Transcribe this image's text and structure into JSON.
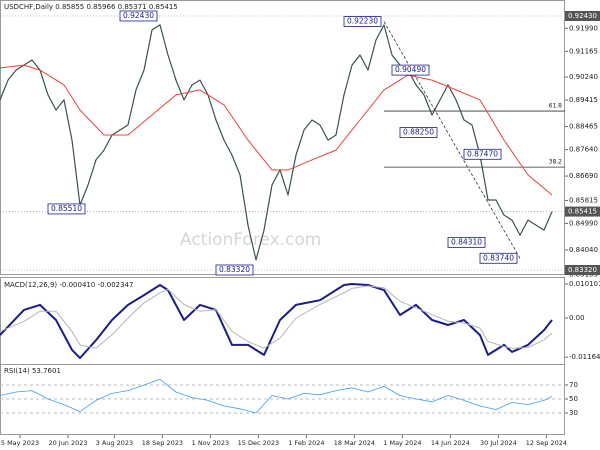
{
  "chart_data": [
    {
      "type": "line",
      "title": "USDCHF,Daily 0.85855 0.85966 0.85371 0.85415",
      "watermark": "ActionForex.com",
      "xlim": [
        0,
        70
      ],
      "ylim": [
        0.83248,
        0.92645
      ],
      "yticks": [
        {
          "value": 0.9199,
          "label": "0.91990"
        },
        {
          "value": 0.91165,
          "label": "0.91165"
        },
        {
          "value": 0.9024,
          "label": "0.90240"
        },
        {
          "value": 0.89415,
          "label": "0.89415"
        },
        {
          "value": 0.88465,
          "label": "0.88465"
        },
        {
          "value": 0.8764,
          "label": "0.87640"
        },
        {
          "value": 0.8669,
          "label": "0.86690"
        },
        {
          "value": 0.85815,
          "label": "0.85815"
        },
        {
          "value": 0.8499,
          "label": "0.84990"
        },
        {
          "value": 0.8404,
          "label": "0.84040"
        },
        {
          "value": 0.83165,
          "label": "0.83165"
        }
      ],
      "series": [
        {
          "color": "#37524f",
          "line_width": 1.2,
          "values": [
            0.8942,
            0.9013,
            0.9049,
            0.9067,
            0.9085,
            0.9049,
            0.896,
            0.8906,
            0.8942,
            0.8798,
            0.8565,
            0.8637,
            0.8727,
            0.8762,
            0.8816,
            0.8834,
            0.8852,
            0.8978,
            0.9049,
            0.9193,
            0.9211,
            0.9103,
            0.9013,
            0.8942,
            0.8996,
            0.9013,
            0.896,
            0.887,
            0.8798,
            0.8744,
            0.8673,
            0.8493,
            0.8368,
            0.8475,
            0.8637,
            0.8691,
            0.8601,
            0.8744,
            0.8834,
            0.887,
            0.8852,
            0.8798,
            0.8816,
            0.896,
            0.9067,
            0.9103,
            0.9049,
            0.9157,
            0.9211,
            0.9103,
            0.9067,
            0.9049,
            0.8996,
            0.896,
            0.8888,
            0.8942,
            0.8996,
            0.8942,
            0.887,
            0.8852,
            0.8744,
            0.8583,
            0.8583,
            0.8529,
            0.8511,
            0.8457,
            0.8511,
            0.8493,
            0.8475,
            0.85415
          ]
        },
        {
          "color": "#e8423c",
          "line_width": 1,
          "x": [
            0,
            3,
            5,
            8,
            10,
            13,
            16,
            19,
            22,
            25,
            28,
            31,
            34,
            36,
            39,
            42,
            45,
            48,
            51,
            54,
            57,
            60,
            63,
            66,
            69
          ],
          "values": [
            0.9057,
            0.9067,
            0.9049,
            0.8996,
            0.8906,
            0.8816,
            0.8816,
            0.8888,
            0.896,
            0.8978,
            0.8924,
            0.8798,
            0.8691,
            0.8691,
            0.8727,
            0.8762,
            0.887,
            0.8978,
            0.9031,
            0.9013,
            0.8978,
            0.8942,
            0.8798,
            0.8673,
            0.8601
          ]
        }
      ],
      "price_markers": [
        {
          "value": 0.9243,
          "label": "0.92430"
        },
        {
          "value": 0.85415,
          "label": "0.85415"
        },
        {
          "value": 0.8332,
          "label": "0.83320"
        }
      ],
      "annotations": [
        {
          "label": "0.92430",
          "x": 15,
          "value": 0.9243
        },
        {
          "label": "0.92230",
          "x": 43,
          "value": 0.9223
        },
        {
          "label": "0.90490",
          "x": 49,
          "value": 0.9049
        },
        {
          "label": "0.88250",
          "x": 50,
          "value": 0.8825
        },
        {
          "label": "0.87470",
          "x": 58,
          "value": 0.8747
        },
        {
          "label": "0.85510",
          "x": 6,
          "value": 0.8551
        },
        {
          "label": "0.84310",
          "x": 56,
          "value": 0.8431
        },
        {
          "label": "0.83740",
          "x": 60,
          "value": 0.8374
        },
        {
          "label": "0.83320",
          "x": 27,
          "value": 0.8332
        }
      ],
      "fib_levels": [
        {
          "label": "61.8",
          "value": 0.8902
        },
        {
          "label": "38.2",
          "value": 0.8701
        }
      ],
      "trendline": {
        "x": [
          48,
          65
        ],
        "values": [
          0.9223,
          0.8374
        ]
      }
    },
    {
      "type": "line",
      "title": "MACD(12,26,9) -0.000410 -0.002347",
      "xlim": [
        0,
        70
      ],
      "ylim": [
        -0.0131,
        0.0113
      ],
      "yticks": [
        {
          "value": 0.010101,
          "label": "0.010101"
        },
        {
          "value": 0,
          "label": "0.00"
        },
        {
          "value": -0.011645,
          "label": "-0.011645"
        }
      ],
      "series": [
        {
          "color": "#1c1c8a",
          "line_width": 2,
          "x": [
            0,
            3,
            5,
            7,
            9,
            10,
            12,
            14,
            16,
            18,
            20,
            21,
            23,
            25,
            27,
            29,
            31,
            33,
            35,
            37,
            40,
            43,
            44,
            46,
            48,
            50,
            52,
            54,
            56,
            58,
            60,
            61,
            63,
            64,
            66,
            68,
            69
          ],
          "values": [
            -0.0051,
            0.0024,
            0.0039,
            -0.0006,
            -0.0095,
            -0.0119,
            -0.0066,
            -0.0006,
            0.0039,
            0.0068,
            0.0098,
            0.0083,
            -0.0006,
            0.0039,
            0.0024,
            -0.008,
            -0.008,
            -0.011,
            -0.0006,
            0.0039,
            0.0053,
            0.0098,
            0.0101,
            0.0098,
            0.0083,
            0.0009,
            0.0039,
            -0.0006,
            -0.0021,
            -0.0006,
            -0.0051,
            -0.011,
            -0.008,
            -0.0101,
            -0.008,
            -0.0036,
            -0.0006
          ]
        },
        {
          "color": "#b5b5b5",
          "line_width": 1,
          "x": [
            0,
            3,
            5,
            7,
            9,
            10,
            12,
            14,
            16,
            18,
            20,
            21,
            23,
            25,
            27,
            29,
            31,
            33,
            35,
            37,
            40,
            43,
            44,
            46,
            48,
            50,
            52,
            54,
            56,
            58,
            60,
            61,
            63,
            64,
            66,
            68,
            69
          ],
          "values": [
            -0.004,
            -0.001,
            0.002,
            0.002,
            -0.004,
            -0.008,
            -0.009,
            -0.005,
            0,
            0.0045,
            0.0075,
            0.0085,
            0.004,
            0.002,
            0.0025,
            -0.004,
            -0.007,
            -0.009,
            -0.006,
            0,
            0.004,
            0.0075,
            0.0088,
            0.0095,
            0.009,
            0.005,
            0.003,
            0.001,
            -0.001,
            -0.0015,
            -0.003,
            -0.007,
            -0.0085,
            -0.009,
            -0.0088,
            -0.0065,
            -0.0045
          ]
        }
      ]
    },
    {
      "type": "line",
      "title": "RSI(14) 53.7601",
      "xlim": [
        0,
        70
      ],
      "ylim": [
        3,
        97
      ],
      "yticks": [
        70,
        50,
        30
      ],
      "grid": true,
      "xticks": [
        {
          "value": 2.5,
          "label": "5 May 2023"
        },
        {
          "value": 8.5,
          "label": "20 Jun 2023"
        },
        {
          "value": 14.3,
          "label": "3 Aug 2023"
        },
        {
          "value": 20.3,
          "label": "18 Sep 2023"
        },
        {
          "value": 26.3,
          "label": "1 Nov 2023"
        },
        {
          "value": 32.3,
          "label": "15 Dec 2023"
        },
        {
          "value": 38.3,
          "label": "1 Feb 2024"
        },
        {
          "value": 44.3,
          "label": "18 Mar 2024"
        },
        {
          "value": 50.3,
          "label": "1 May 2024"
        },
        {
          "value": 56.3,
          "label": "14 Jun 2024"
        },
        {
          "value": 62.3,
          "label": "30 Jul 2024"
        },
        {
          "value": 68.3,
          "label": "12 Sep 2024"
        }
      ],
      "series": [
        {
          "color": "#3d9df0",
          "line_width": 0.8,
          "x": [
            0,
            2,
            4,
            6,
            8,
            10,
            12,
            14,
            16,
            18,
            20,
            22,
            24,
            26,
            28,
            30,
            32,
            34,
            36,
            38,
            40,
            42,
            44,
            46,
            48,
            50,
            52,
            54,
            56,
            58,
            60,
            62,
            64,
            66,
            68,
            69
          ],
          "values": [
            55,
            60,
            62,
            50,
            42,
            32,
            48,
            58,
            62,
            70,
            78,
            60,
            52,
            48,
            40,
            36,
            30,
            55,
            50,
            58,
            56,
            62,
            66,
            60,
            68,
            55,
            50,
            46,
            55,
            48,
            40,
            35,
            45,
            42,
            48,
            53.7601
          ]
        }
      ]
    }
  ]
}
